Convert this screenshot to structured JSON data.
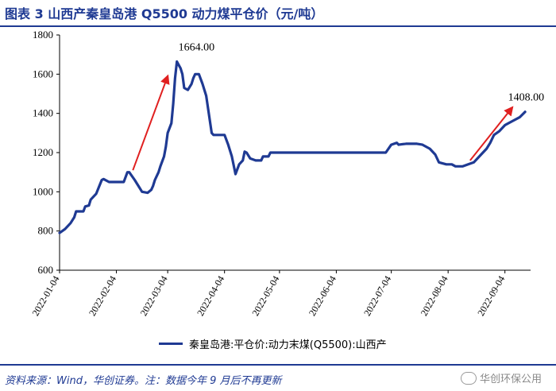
{
  "header": {
    "title": "图表 3   山西产秦皇岛港 Q5500 动力煤平仓价（元/吨）"
  },
  "footer": {
    "source": "资料来源：Wind，华创证券。注：数据今年 9 月后不再更新",
    "watermark": "华创环保公用"
  },
  "colors": {
    "series": "#1f3a93",
    "arrow": "#e02020",
    "title": "#1f3a93"
  },
  "chart_data": {
    "type": "line",
    "title": "",
    "xlabel": "",
    "ylabel": "",
    "ylim": [
      600,
      1800
    ],
    "yticks": [
      600,
      800,
      1000,
      1200,
      1400,
      1600,
      1800
    ],
    "x_range": [
      "2022-01-04",
      "2022-09-18"
    ],
    "xticks": [
      "2022-01-04",
      "2022-02-04",
      "2022-03-04",
      "2022-04-04",
      "2022-05-04",
      "2022-06-04",
      "2022-07-04",
      "2022-08-04",
      "2022-09-04"
    ],
    "grid": false,
    "legend_position": "bottom",
    "series": [
      {
        "name": "秦皇岛港:平仓价:动力末煤(Q5500):山西产",
        "color": "#1f3a93",
        "points": [
          [
            "2022-01-04",
            790
          ],
          [
            "2022-01-07",
            810
          ],
          [
            "2022-01-10",
            840
          ],
          [
            "2022-01-12",
            870
          ],
          [
            "2022-01-13",
            900
          ],
          [
            "2022-01-17",
            900
          ],
          [
            "2022-01-18",
            925
          ],
          [
            "2022-01-20",
            930
          ],
          [
            "2022-01-21",
            960
          ],
          [
            "2022-01-24",
            990
          ],
          [
            "2022-01-27",
            1060
          ],
          [
            "2022-01-28",
            1065
          ],
          [
            "2022-01-31",
            1050
          ],
          [
            "2022-02-04",
            1050
          ],
          [
            "2022-02-08",
            1050
          ],
          [
            "2022-02-10",
            1100
          ],
          [
            "2022-02-11",
            1100
          ],
          [
            "2022-02-14",
            1060
          ],
          [
            "2022-02-16",
            1030
          ],
          [
            "2022-02-18",
            1000
          ],
          [
            "2022-02-21",
            995
          ],
          [
            "2022-02-23",
            1010
          ],
          [
            "2022-02-24",
            1030
          ],
          [
            "2022-02-25",
            1060
          ],
          [
            "2022-02-27",
            1100
          ],
          [
            "2022-02-28",
            1130
          ],
          [
            "2022-03-02",
            1180
          ],
          [
            "2022-03-03",
            1230
          ],
          [
            "2022-03-04",
            1300
          ],
          [
            "2022-03-06",
            1350
          ],
          [
            "2022-03-07",
            1450
          ],
          [
            "2022-03-08",
            1580
          ],
          [
            "2022-03-09",
            1664
          ],
          [
            "2022-03-11",
            1630
          ],
          [
            "2022-03-12",
            1600
          ],
          [
            "2022-03-13",
            1530
          ],
          [
            "2022-03-15",
            1520
          ],
          [
            "2022-03-17",
            1550
          ],
          [
            "2022-03-18",
            1580
          ],
          [
            "2022-03-19",
            1600
          ],
          [
            "2022-03-21",
            1600
          ],
          [
            "2022-03-23",
            1550
          ],
          [
            "2022-03-25",
            1490
          ],
          [
            "2022-03-28",
            1300
          ],
          [
            "2022-03-29",
            1290
          ],
          [
            "2022-04-04",
            1290
          ],
          [
            "2022-04-06",
            1240
          ],
          [
            "2022-04-08",
            1180
          ],
          [
            "2022-04-10",
            1090
          ],
          [
            "2022-04-12",
            1140
          ],
          [
            "2022-04-14",
            1160
          ],
          [
            "2022-04-15",
            1205
          ],
          [
            "2022-04-16",
            1200
          ],
          [
            "2022-04-18",
            1170
          ],
          [
            "2022-04-21",
            1160
          ],
          [
            "2022-04-24",
            1160
          ],
          [
            "2022-04-25",
            1180
          ],
          [
            "2022-04-28",
            1180
          ],
          [
            "2022-04-29",
            1200
          ],
          [
            "2022-05-04",
            1200
          ],
          [
            "2022-05-20",
            1200
          ],
          [
            "2022-06-04",
            1200
          ],
          [
            "2022-06-20",
            1200
          ],
          [
            "2022-07-01",
            1200
          ],
          [
            "2022-07-04",
            1240
          ],
          [
            "2022-07-07",
            1250
          ],
          [
            "2022-07-08",
            1240
          ],
          [
            "2022-07-12",
            1245
          ],
          [
            "2022-07-18",
            1245
          ],
          [
            "2022-07-21",
            1240
          ],
          [
            "2022-07-25",
            1220
          ],
          [
            "2022-07-28",
            1190
          ],
          [
            "2022-07-30",
            1150
          ],
          [
            "2022-08-03",
            1140
          ],
          [
            "2022-08-06",
            1140
          ],
          [
            "2022-08-08",
            1130
          ],
          [
            "2022-08-12",
            1130
          ],
          [
            "2022-08-15",
            1140
          ],
          [
            "2022-08-18",
            1150
          ],
          [
            "2022-08-20",
            1170
          ],
          [
            "2022-08-23",
            1200
          ],
          [
            "2022-08-25",
            1220
          ],
          [
            "2022-08-27",
            1250
          ],
          [
            "2022-08-29",
            1290
          ],
          [
            "2022-09-01",
            1310
          ],
          [
            "2022-09-04",
            1340
          ],
          [
            "2022-09-08",
            1360
          ],
          [
            "2022-09-12",
            1380
          ],
          [
            "2022-09-15",
            1408
          ]
        ]
      }
    ],
    "annotations": [
      {
        "text": "1664.00",
        "x": "2022-03-09",
        "y": 1664
      },
      {
        "text": "1408.00",
        "x": "2022-09-15",
        "y": 1408
      }
    ],
    "arrows": [
      {
        "from": [
          "2022-02-13",
          1110
        ],
        "to": [
          "2022-03-04",
          1590
        ]
      },
      {
        "from": [
          "2022-08-16",
          1160
        ],
        "to": [
          "2022-09-08",
          1430
        ]
      }
    ]
  }
}
